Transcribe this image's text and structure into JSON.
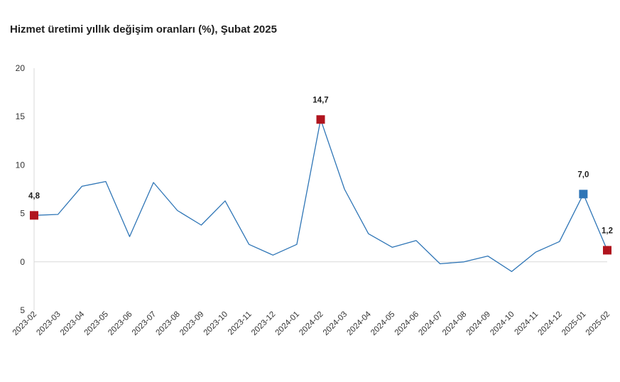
{
  "chart_data": {
    "type": "line",
    "title": "Hizmet üretimi yıllık değişim oranları (%), Şubat 2025",
    "xlabel": "",
    "ylabel": "",
    "ylim": [
      -5,
      20
    ],
    "ytick_labels": [
      "20",
      "15",
      "10",
      "5",
      "0",
      "5"
    ],
    "ytick_values": [
      20,
      15,
      10,
      5,
      0,
      -5
    ],
    "grid": "zero-line only",
    "legend": "none",
    "categories": [
      "2023-02",
      "2023-03",
      "2023-04",
      "2023-05",
      "2023-06",
      "2023-07",
      "2023-08",
      "2023-09",
      "2023-10",
      "2023-11",
      "2023-12",
      "2024-01",
      "2024-02",
      "2024-03",
      "2024-04",
      "2024-05",
      "2024-06",
      "2024-07",
      "2024-08",
      "2024-09",
      "2024-10",
      "2024-11",
      "2024-12",
      "2025-01",
      "2025-02"
    ],
    "series": [
      {
        "values": [
          4.8,
          4.9,
          7.8,
          8.3,
          2.6,
          8.2,
          5.3,
          3.8,
          6.3,
          1.8,
          0.7,
          1.8,
          14.7,
          7.5,
          2.9,
          1.5,
          2.2,
          -0.2,
          0.0,
          0.6,
          -1.0,
          1.0,
          2.1,
          7.0,
          1.2
        ],
        "color": "#2e75b6"
      }
    ],
    "highlighted_points": [
      {
        "category": "2023-02",
        "value": 4.8,
        "label": "4,8",
        "color": "#b0141e"
      },
      {
        "category": "2024-02",
        "value": 14.7,
        "label": "14,7",
        "color": "#b0141e"
      },
      {
        "category": "2025-01",
        "value": 7.0,
        "label": "7,0",
        "color": "#2e75b6"
      },
      {
        "category": "2025-02",
        "value": 1.2,
        "label": "1,2",
        "color": "#b0141e"
      }
    ]
  }
}
